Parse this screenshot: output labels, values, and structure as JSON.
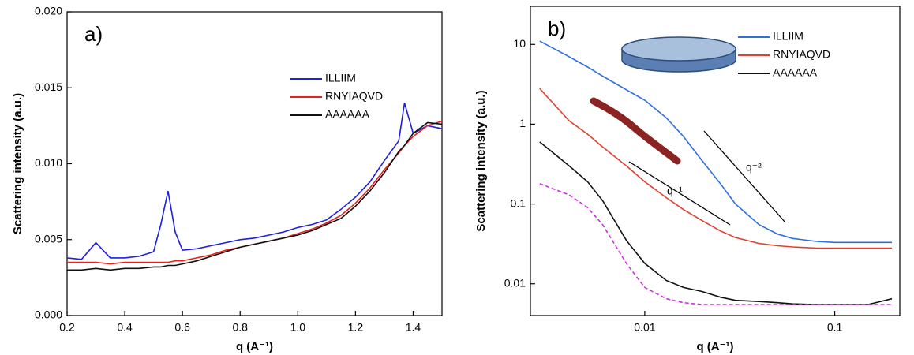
{
  "chart_data": [
    {
      "type": "line",
      "panel_label": "a)",
      "xlabel": "q (A⁻¹)",
      "ylabel": "Scattering intensity (a.u.)",
      "x": [
        0.2,
        0.25,
        0.3,
        0.35,
        0.4,
        0.45,
        0.5,
        0.525,
        0.55,
        0.575,
        0.6,
        0.65,
        0.7,
        0.75,
        0.8,
        0.85,
        0.9,
        0.95,
        1.0,
        1.05,
        1.1,
        1.15,
        1.2,
        1.25,
        1.3,
        1.35,
        1.37,
        1.4,
        1.45,
        1.5
      ],
      "series": [
        {
          "name": "ILLIIM",
          "color": "#1f1fe0",
          "values": [
            0.0038,
            0.0037,
            0.0048,
            0.0038,
            0.0038,
            0.0039,
            0.0042,
            0.006,
            0.0082,
            0.0055,
            0.0043,
            0.0044,
            0.0046,
            0.0048,
            0.005,
            0.0051,
            0.0053,
            0.0055,
            0.0058,
            0.006,
            0.0063,
            0.007,
            0.0078,
            0.0088,
            0.0102,
            0.0115,
            0.014,
            0.012,
            0.0125,
            0.0123
          ]
        },
        {
          "name": "RNYIAQVD",
          "color": "#e8201e",
          "values": [
            0.0035,
            0.0035,
            0.0035,
            0.0034,
            0.0035,
            0.0035,
            0.0035,
            0.0035,
            0.0035,
            0.0036,
            0.0036,
            0.0038,
            0.004,
            0.0043,
            0.0045,
            0.0047,
            0.0049,
            0.0051,
            0.0054,
            0.0057,
            0.0061,
            0.0066,
            0.0074,
            0.0084,
            0.0096,
            0.0107,
            0.0112,
            0.0118,
            0.0125,
            0.0128
          ]
        },
        {
          "name": "AAAAAA",
          "color": "#111111",
          "values": [
            0.003,
            0.003,
            0.0031,
            0.003,
            0.0031,
            0.0031,
            0.0032,
            0.0032,
            0.0033,
            0.0033,
            0.0034,
            0.0036,
            0.0039,
            0.0042,
            0.0045,
            0.0047,
            0.0049,
            0.0051,
            0.0053,
            0.0056,
            0.006,
            0.0064,
            0.0072,
            0.0082,
            0.0094,
            0.0108,
            0.0112,
            0.012,
            0.0127,
            0.0126
          ]
        }
      ],
      "xlim": [
        0.2,
        1.5
      ],
      "ylim": [
        0,
        0.02
      ],
      "xticks": [
        0.2,
        0.4,
        0.6,
        0.8,
        {
          "value": 1,
          "label": "1.0"
        },
        1.2,
        1.4
      ],
      "yticks": [
        {
          "value": 0,
          "label": "0.000"
        },
        {
          "value": 0.005,
          "label": "0.005"
        },
        {
          "value": 0.01,
          "label": "0.010"
        },
        {
          "value": 0.015,
          "label": "0.015"
        },
        {
          "value": 0.02,
          "label": "0.020"
        }
      ],
      "legend": "upper right"
    },
    {
      "type": "line",
      "panel_label": "b)",
      "xlabel": "q (A⁻¹)",
      "ylabel": "Scattering intensity (a.u.)",
      "annotations": [
        "q⁻¹",
        "q⁻²"
      ],
      "log_x": true,
      "log_y": true,
      "x": [
        0.0028,
        0.004,
        0.005,
        0.006,
        0.008,
        0.01,
        0.013,
        0.016,
        0.02,
        0.025,
        0.03,
        0.04,
        0.05,
        0.06,
        0.08,
        0.1,
        0.15,
        0.2
      ],
      "series": [
        {
          "name": "ILLIIM",
          "color": "#2c6fe0",
          "values": [
            11,
            7,
            5.2,
            4.0,
            2.7,
            2.0,
            1.2,
            0.7,
            0.35,
            0.18,
            0.1,
            0.055,
            0.042,
            0.037,
            0.034,
            0.033,
            0.033,
            0.033
          ]
        },
        {
          "name": "RNYIAQVD",
          "color": "#e04030",
          "values": [
            2.8,
            1.1,
            0.75,
            0.52,
            0.3,
            0.19,
            0.12,
            0.085,
            0.062,
            0.046,
            0.038,
            0.032,
            0.03,
            0.029,
            0.028,
            0.028,
            0.028,
            0.028
          ]
        },
        {
          "name": "AAAAAA",
          "color": "#111111",
          "values": [
            0.6,
            0.3,
            0.19,
            0.11,
            0.035,
            0.018,
            0.011,
            0.009,
            0.008,
            0.0068,
            0.0062,
            0.006,
            0.0058,
            0.0056,
            0.0055,
            0.0055,
            0.0055,
            0.0065
          ]
        },
        {
          "color": "#d030e0",
          "dashed": true,
          "values": [
            0.18,
            0.13,
            0.09,
            0.055,
            0.018,
            0.009,
            0.0065,
            0.0058,
            0.0055,
            0.0055,
            0.0055,
            0.0055,
            0.0055,
            0.0055,
            0.0055,
            0.0055,
            0.0055,
            0.0055
          ]
        }
      ],
      "xlim": [
        0.0025,
        0.22
      ],
      "ylim": [
        0.004,
        30
      ],
      "xticks": [
        0.01,
        0.1
      ],
      "yticks": [
        0.01,
        0.1,
        1,
        10
      ],
      "legend": "upper right"
    }
  ]
}
